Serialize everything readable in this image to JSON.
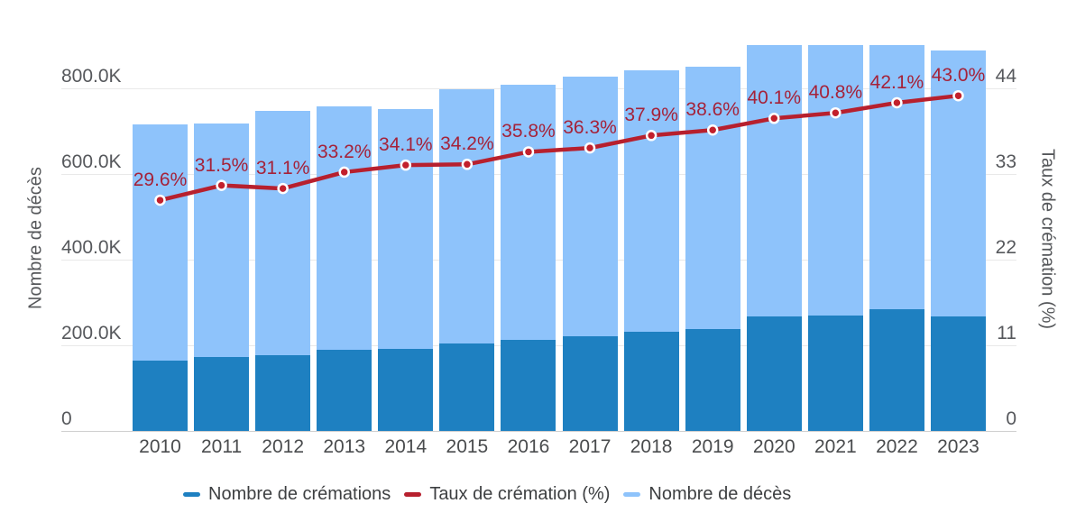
{
  "chart_data": {
    "type": "bar+line",
    "description": "Stacked bars (crémations + décès) on left axis with cremation-rate line on right axis; bars for 2020-2022 exceed the left-axis max and are clipped at the plot top",
    "categories": [
      "2010",
      "2011",
      "2012",
      "2013",
      "2014",
      "2015",
      "2016",
      "2017",
      "2018",
      "2019",
      "2020",
      "2021",
      "2022",
      "2023"
    ],
    "series": [
      {
        "name": "Nombre de crémations",
        "type": "bar",
        "stack_position": "bottom",
        "axis": "left",
        "values_thousands": [
          163,
          172,
          177,
          189,
          191,
          203,
          213,
          221,
          231,
          237,
          268,
          269,
          284,
          267
        ],
        "color": "#1e80c1"
      },
      {
        "name": "Nombre de décès",
        "type": "bar",
        "stack_position": "top",
        "axis": "left",
        "values_thousands": [
          551,
          545,
          570,
          569,
          559,
          594,
          594,
          606,
          610,
          613,
          669,
          660,
          675,
          621
        ],
        "color": "#8ec3fb"
      },
      {
        "name": "Taux de crémation (%)",
        "type": "line",
        "axis": "right",
        "values_percent": [
          29.6,
          31.5,
          31.1,
          33.2,
          34.1,
          34.2,
          35.8,
          36.3,
          37.9,
          38.6,
          40.1,
          40.8,
          42.1,
          43.0
        ],
        "data_labels": [
          "29.6%",
          "31.5%",
          "31.1%",
          "33.2%",
          "34.1%",
          "34.2%",
          "35.8%",
          "36.3%",
          "37.9%",
          "38.6%",
          "40.1%",
          "40.8%",
          "42.1%",
          "43.0%"
        ],
        "line_color": "#b7202e",
        "marker_color": "#c2202c",
        "label_color": "#a52239"
      }
    ],
    "left_axis": {
      "title": "Nombre de décès",
      "tick_labels": [
        "0",
        "200.0K",
        "400.0K",
        "600.0K",
        "800.0K"
      ],
      "tick_values_thousands": [
        0,
        200,
        400,
        600,
        800
      ],
      "range_thousands": [
        0,
        900
      ]
    },
    "right_axis": {
      "title": "Taux de crémation (%)",
      "tick_labels": [
        "0",
        "11",
        "22",
        "33",
        "44"
      ],
      "tick_values": [
        0,
        11,
        22,
        33,
        44
      ],
      "range": [
        0,
        49.5
      ]
    },
    "legend": {
      "position": "bottom",
      "items": [
        {
          "label": "Nombre de crémations",
          "color": "#1e80c1"
        },
        {
          "label": "Taux de crémation (%)",
          "color": "#b7202e"
        },
        {
          "label": "Nombre de décès",
          "color": "#8ec3fb"
        }
      ]
    },
    "grid": "horizontal gridlines only, light gray",
    "background": "#ffffff"
  }
}
